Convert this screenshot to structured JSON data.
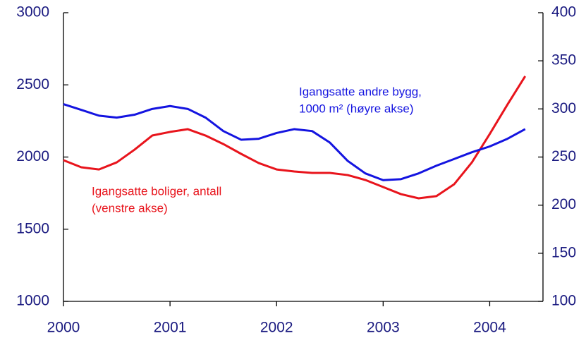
{
  "chart_data": {
    "type": "line",
    "x": [
      2000,
      2000.167,
      2000.333,
      2000.5,
      2000.667,
      2000.833,
      2001,
      2001.167,
      2001.333,
      2001.5,
      2001.667,
      2001.833,
      2002,
      2002.167,
      2002.333,
      2002.5,
      2002.667,
      2002.833,
      2003,
      2003.167,
      2003.333,
      2003.5,
      2003.667,
      2003.833,
      2004,
      2004.167,
      2004.333
    ],
    "series": [
      {
        "name": "Igangsatte boliger, antall (venstre akse)",
        "color": "#e8141c",
        "axis": "y",
        "values": [
          1978,
          1929,
          1914,
          1963,
          2051,
          2149,
          2174,
          2193,
          2149,
          2090,
          2022,
          1958,
          1914,
          1900,
          1890,
          1890,
          1875,
          1841,
          1792,
          1743,
          1714,
          1729,
          1812,
          1963,
          2159,
          2364,
          2560
        ]
      },
      {
        "name": "Igangsatte andre bygg, 1000 m² (høyre akse)",
        "color": "#1414e0",
        "axis": "y2",
        "values": [
          305,
          299,
          293,
          291,
          294,
          300,
          303,
          300,
          291,
          277,
          268,
          269,
          275,
          279,
          277,
          265,
          246,
          233,
          226,
          227,
          233,
          241,
          248,
          255,
          261,
          269,
          279
        ]
      }
    ],
    "annotations": [
      {
        "lines": [
          "Igangsatte andre bygg,",
          "1000 m² (høyre akse)"
        ],
        "color": "#1414e0"
      },
      {
        "lines": [
          "Igangsatte boliger, antall",
          "(venstre akse)"
        ],
        "color": "#e8141c"
      }
    ],
    "xlim": [
      2000,
      2004.5
    ],
    "xticks": [
      2000,
      2001,
      2002,
      2003,
      2004
    ],
    "ylim": [
      1000,
      3000
    ],
    "yticks": [
      1000,
      1500,
      2000,
      2500,
      3000
    ],
    "y2lim": [
      100,
      400
    ],
    "y2ticks": [
      100,
      150,
      200,
      250,
      300,
      350,
      400
    ]
  }
}
